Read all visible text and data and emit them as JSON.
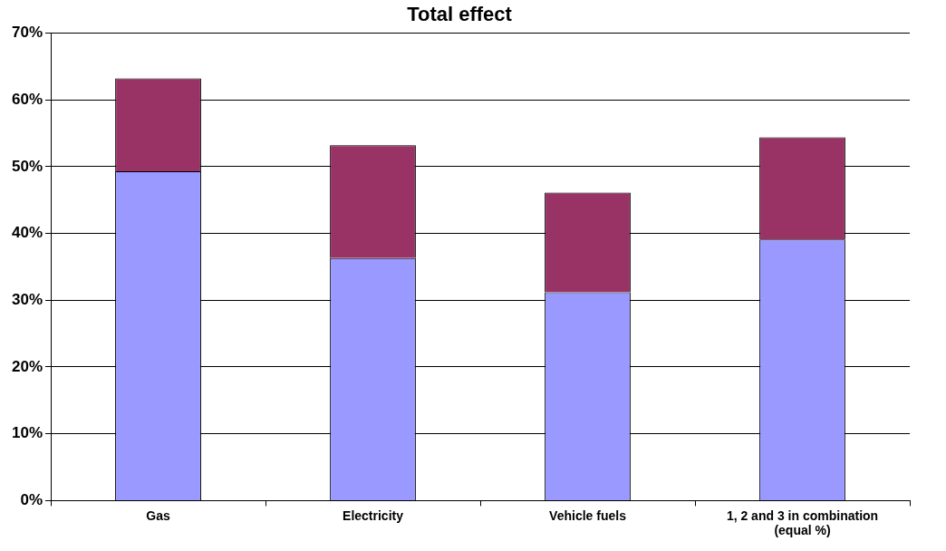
{
  "chart_data": {
    "type": "bar",
    "title": "Total effect",
    "categories": [
      "Gas",
      "Electricity",
      "Vehicle fuels",
      "1, 2 and 3 in combination (equal %)"
    ],
    "stacked": true,
    "series": [
      {
        "color": "#9999ff",
        "values": [
          49.3,
          36.3,
          31.2,
          39.1
        ]
      },
      {
        "color": "#993366",
        "values": [
          13.9,
          16.9,
          14.9,
          15.3
        ]
      }
    ],
    "ylim": [
      0,
      70
    ],
    "yticks": [
      {
        "value": 0,
        "label": "0%"
      },
      {
        "value": 10,
        "label": "10%"
      },
      {
        "value": 20,
        "label": "20%"
      },
      {
        "value": 30,
        "label": "30%"
      },
      {
        "value": 40,
        "label": "40%"
      },
      {
        "value": 50,
        "label": "50%"
      },
      {
        "value": 60,
        "label": "60%"
      },
      {
        "value": 70,
        "label": "70%"
      }
    ],
    "grid": "y",
    "legend": false
  }
}
